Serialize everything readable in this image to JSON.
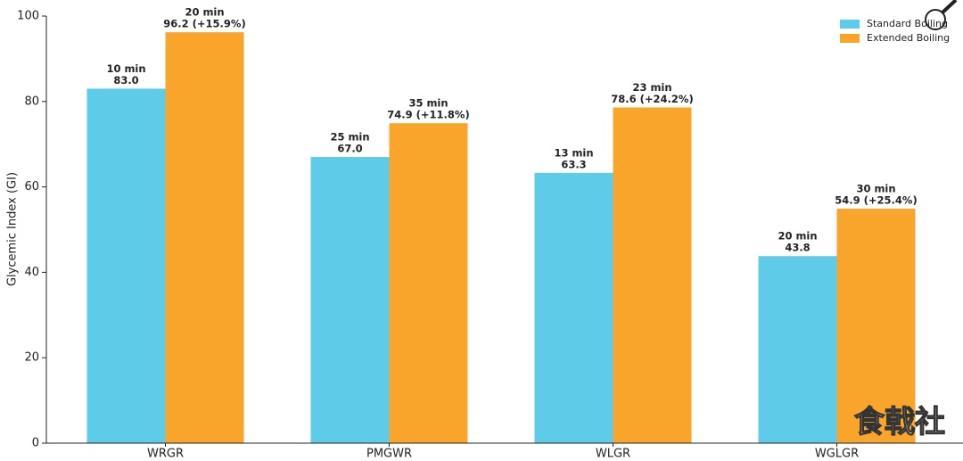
{
  "chart_data": {
    "type": "bar",
    "y_label": "Glycemic Index (GI)",
    "categories": [
      "WRGR",
      "PMGWR",
      "WLGR",
      "WGLGR"
    ],
    "series": [
      {
        "name": "Standard Boiling",
        "color": "#5ecbe8",
        "label_color": "#3535b5",
        "values": [
          83.0,
          67.0,
          63.3,
          43.8
        ],
        "value_labels": [
          "83.0",
          "67.0",
          "63.3",
          "43.8"
        ],
        "boil_times": [
          "10 min",
          "25 min",
          "13 min",
          "20 min"
        ]
      },
      {
        "name": "Extended Boiling",
        "color": "#f9a52c",
        "label_color": "#d42a30",
        "values": [
          96.2,
          74.9,
          78.6,
          54.9
        ],
        "value_labels": [
          "96.2 (+15.9%)",
          "74.9 (+11.8%)",
          "78.6 (+24.2%)",
          "54.9 (+25.4%)"
        ],
        "boil_times": [
          "20 min",
          "35 min",
          "23 min",
          "30 min"
        ]
      }
    ],
    "ylim": [
      0,
      100
    ],
    "yticks": [
      0,
      20,
      40,
      60,
      80,
      100
    ],
    "legend": "upper right",
    "watermark": "食戟社"
  }
}
